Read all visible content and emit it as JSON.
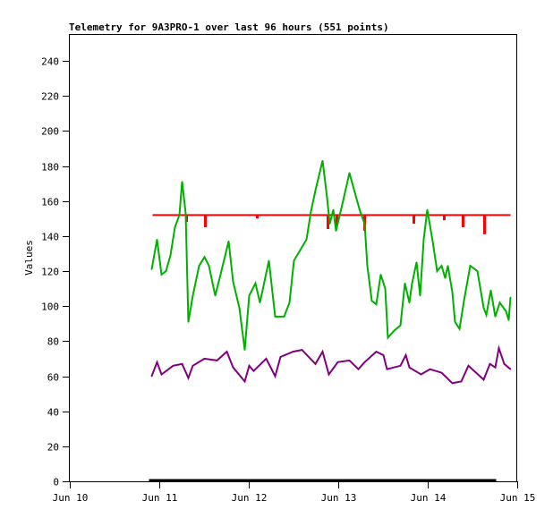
{
  "chart_data": {
    "type": "line",
    "title": "Telemetry for 9A3PRO-1 over last 96 hours (551 points)",
    "xlabel": "",
    "ylabel": "Values",
    "x_unit": "days since Jun 10 00:00",
    "xlim": [
      0,
      5
    ],
    "ylim": [
      0,
      255
    ],
    "yticks": [
      0,
      20,
      40,
      60,
      80,
      100,
      120,
      140,
      160,
      180,
      200,
      220,
      240
    ],
    "xticks": [
      {
        "value": 0,
        "label": "Jun 10"
      },
      {
        "value": 1,
        "label": "Jun 11"
      },
      {
        "value": 2,
        "label": "Jun 12"
      },
      {
        "value": 3,
        "label": "Jun 13"
      },
      {
        "value": 4,
        "label": "Jun 14"
      },
      {
        "value": 5,
        "label": "Jun 15"
      }
    ],
    "grid": false,
    "series": [
      {
        "name": "red",
        "color": "#ff0000",
        "baseline": 152,
        "x_range": [
          0.93,
          4.93
        ],
        "dips": [
          [
            1.31,
            148
          ],
          [
            1.52,
            145
          ],
          [
            2.1,
            150
          ],
          [
            2.89,
            144
          ],
          [
            2.99,
            146
          ],
          [
            3.3,
            143
          ],
          [
            3.85,
            147
          ],
          [
            4.19,
            149
          ],
          [
            4.4,
            145
          ],
          [
            4.64,
            141
          ]
        ]
      },
      {
        "name": "green",
        "color": "#00b000",
        "points": [
          [
            0.92,
            121
          ],
          [
            0.98,
            138
          ],
          [
            1.03,
            118
          ],
          [
            1.08,
            120
          ],
          [
            1.13,
            129
          ],
          [
            1.18,
            145
          ],
          [
            1.23,
            152
          ],
          [
            1.26,
            171
          ],
          [
            1.3,
            153
          ],
          [
            1.33,
            91
          ],
          [
            1.38,
            106
          ],
          [
            1.45,
            123
          ],
          [
            1.51,
            128
          ],
          [
            1.56,
            123
          ],
          [
            1.63,
            106
          ],
          [
            1.68,
            116
          ],
          [
            1.78,
            137
          ],
          [
            1.83,
            114
          ],
          [
            1.9,
            99
          ],
          [
            1.96,
            75
          ],
          [
            2.01,
            106
          ],
          [
            2.08,
            113
          ],
          [
            2.13,
            102
          ],
          [
            2.23,
            126
          ],
          [
            2.3,
            94
          ],
          [
            2.4,
            94
          ],
          [
            2.46,
            102
          ],
          [
            2.51,
            126
          ],
          [
            2.65,
            138
          ],
          [
            2.7,
            154
          ],
          [
            2.75,
            166
          ],
          [
            2.83,
            183
          ],
          [
            2.88,
            162
          ],
          [
            2.91,
            147
          ],
          [
            2.95,
            155
          ],
          [
            2.98,
            143
          ],
          [
            3.05,
            158
          ],
          [
            3.13,
            176
          ],
          [
            3.2,
            163
          ],
          [
            3.25,
            154
          ],
          [
            3.3,
            147
          ],
          [
            3.33,
            123
          ],
          [
            3.38,
            103
          ],
          [
            3.43,
            101
          ],
          [
            3.48,
            118
          ],
          [
            3.53,
            110
          ],
          [
            3.56,
            82
          ],
          [
            3.63,
            86
          ],
          [
            3.7,
            89
          ],
          [
            3.75,
            113
          ],
          [
            3.8,
            102
          ],
          [
            3.83,
            113
          ],
          [
            3.88,
            125
          ],
          [
            3.92,
            106
          ],
          [
            3.96,
            138
          ],
          [
            4.0,
            155
          ],
          [
            4.06,
            137
          ],
          [
            4.11,
            120
          ],
          [
            4.16,
            123
          ],
          [
            4.2,
            116
          ],
          [
            4.23,
            123
          ],
          [
            4.28,
            108
          ],
          [
            4.31,
            91
          ],
          [
            4.36,
            87
          ],
          [
            4.41,
            103
          ],
          [
            4.48,
            123
          ],
          [
            4.56,
            120
          ],
          [
            4.63,
            99
          ],
          [
            4.66,
            95
          ],
          [
            4.71,
            109
          ],
          [
            4.76,
            94
          ],
          [
            4.81,
            102
          ],
          [
            4.88,
            97
          ],
          [
            4.91,
            92
          ],
          [
            4.93,
            105
          ]
        ]
      },
      {
        "name": "purple",
        "color": "#800080",
        "points": [
          [
            0.92,
            60
          ],
          [
            0.98,
            68
          ],
          [
            1.03,
            61
          ],
          [
            1.16,
            66
          ],
          [
            1.26,
            67
          ],
          [
            1.33,
            59
          ],
          [
            1.38,
            66
          ],
          [
            1.51,
            70
          ],
          [
            1.65,
            69
          ],
          [
            1.76,
            74
          ],
          [
            1.83,
            65
          ],
          [
            1.96,
            57
          ],
          [
            2.01,
            66
          ],
          [
            2.06,
            63
          ],
          [
            2.2,
            70
          ],
          [
            2.3,
            60
          ],
          [
            2.36,
            71
          ],
          [
            2.5,
            74
          ],
          [
            2.6,
            75
          ],
          [
            2.75,
            67
          ],
          [
            2.83,
            74
          ],
          [
            2.9,
            61
          ],
          [
            3.0,
            68
          ],
          [
            3.13,
            69
          ],
          [
            3.23,
            64
          ],
          [
            3.3,
            68
          ],
          [
            3.43,
            74
          ],
          [
            3.51,
            72
          ],
          [
            3.55,
            64
          ],
          [
            3.7,
            66
          ],
          [
            3.76,
            72
          ],
          [
            3.8,
            65
          ],
          [
            3.93,
            61
          ],
          [
            4.03,
            64
          ],
          [
            4.16,
            62
          ],
          [
            4.28,
            56
          ],
          [
            4.38,
            57
          ],
          [
            4.46,
            66
          ],
          [
            4.63,
            58
          ],
          [
            4.7,
            67
          ],
          [
            4.76,
            65
          ],
          [
            4.8,
            76
          ],
          [
            4.86,
            67
          ],
          [
            4.93,
            64
          ]
        ]
      },
      {
        "name": "black",
        "color": "#000000",
        "points": [
          [
            0.89,
            0.5
          ],
          [
            4.77,
            0.5
          ]
        ]
      }
    ]
  }
}
